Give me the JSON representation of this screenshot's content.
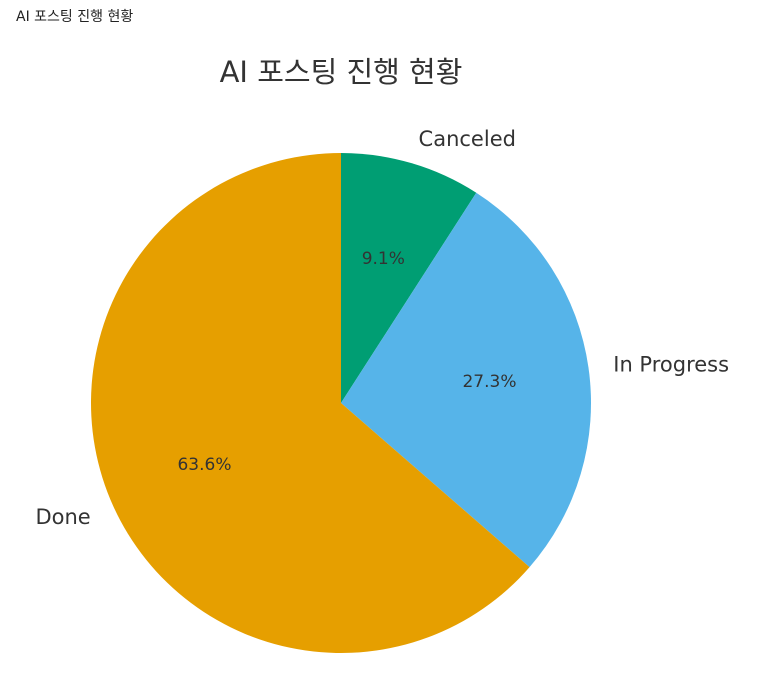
{
  "page": {
    "caption": "AI 포스팅 진행 현황"
  },
  "chart_data": {
    "type": "pie",
    "title": "AI 포스팅 진행 현황",
    "categories": [
      "Canceled",
      "In Progress",
      "Done"
    ],
    "values": [
      9.1,
      27.3,
      63.6
    ],
    "value_labels": [
      "9.1%",
      "27.3%",
      "63.6%"
    ],
    "colors": [
      "#009E73",
      "#56B4E9",
      "#E69F00"
    ],
    "start": "12 o'clock, clockwise",
    "legend": "labels outside slices"
  }
}
